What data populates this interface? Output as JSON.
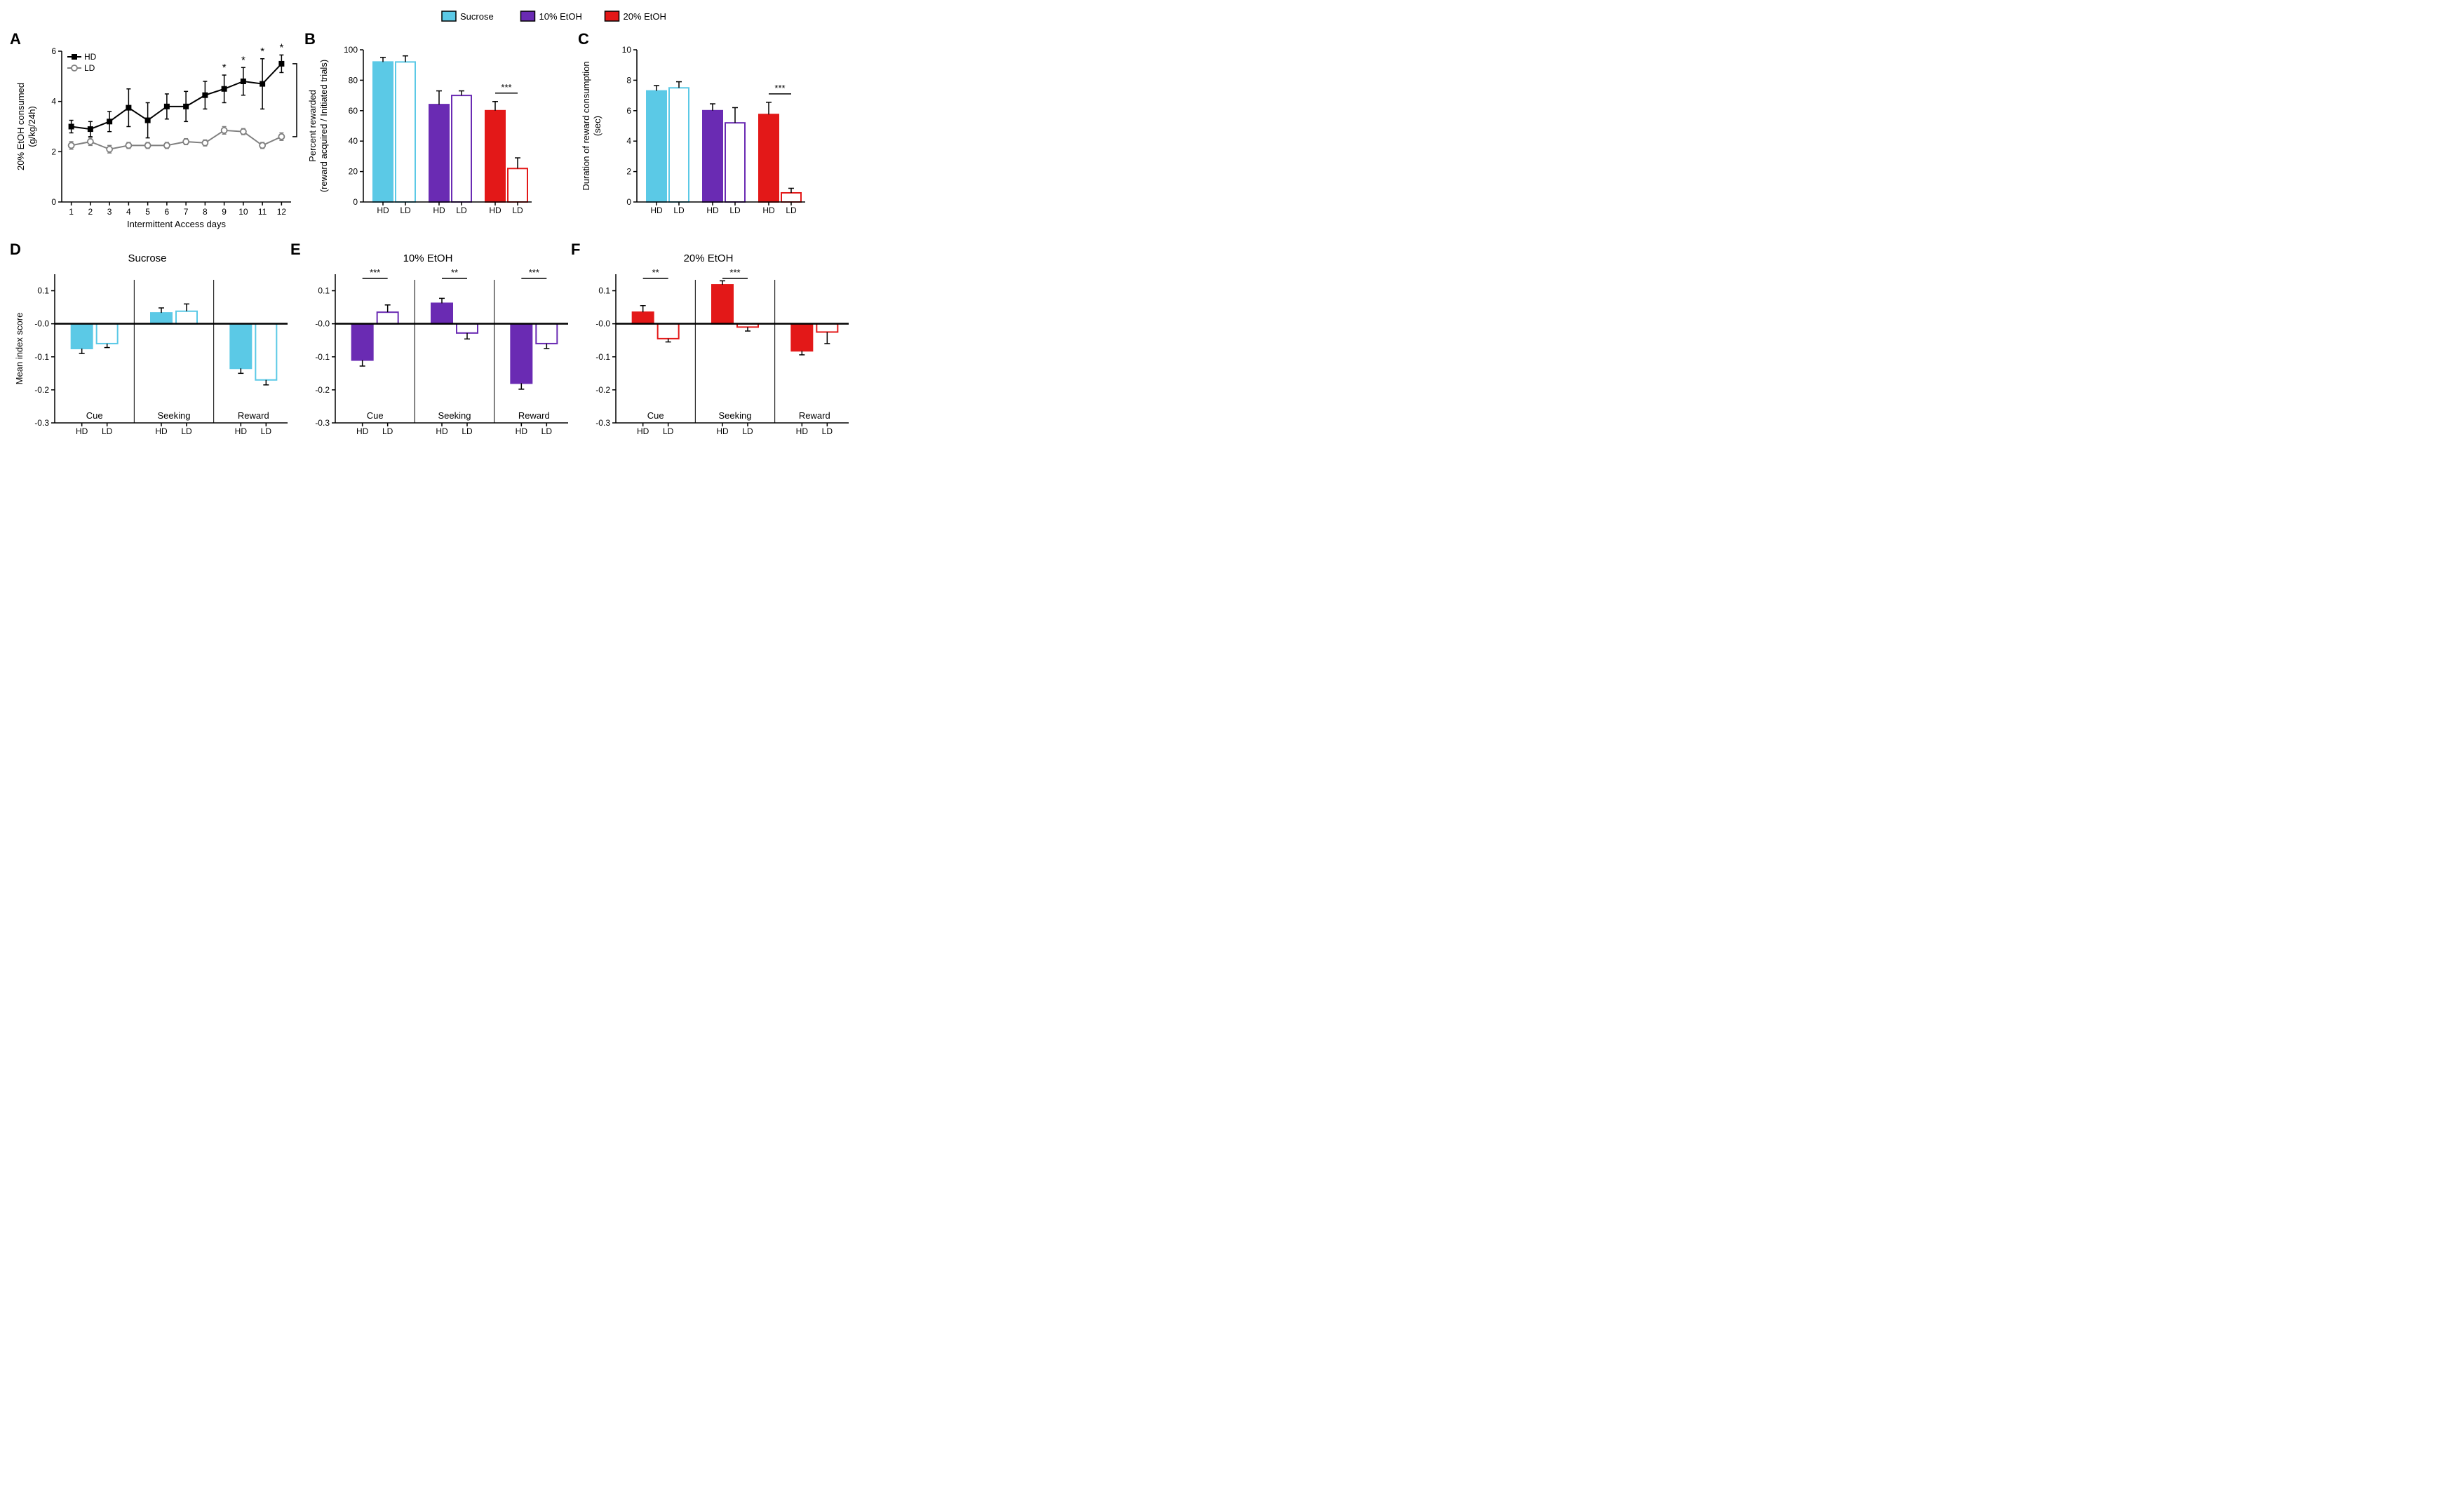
{
  "colors": {
    "sucrose": "#5bc9e6",
    "etoh10": "#6a2bb3",
    "etoh20": "#e31818",
    "black": "#000000",
    "gray": "#808080",
    "white": "#ffffff"
  },
  "legend": {
    "items": [
      {
        "label": "Sucrose",
        "fill": "#5bc9e6"
      },
      {
        "label": "10% EtOH",
        "fill": "#6a2bb3"
      },
      {
        "label": "20% EtOH",
        "fill": "#e31818"
      }
    ]
  },
  "panelA": {
    "label": "A",
    "xlabel": "Intermittent Access days",
    "ylabel": "20% EtOH consumed\n(g/kg/24h)",
    "xlim": [
      0.5,
      12.5
    ],
    "ylim": [
      0,
      6
    ],
    "xticks": [
      1,
      2,
      3,
      4,
      5,
      6,
      7,
      8,
      9,
      10,
      11,
      12
    ],
    "yticks": [
      0,
      2,
      4,
      6
    ],
    "series": [
      {
        "name": "HD",
        "color": "#000000",
        "marker": "square_filled",
        "x": [
          1,
          2,
          3,
          4,
          5,
          6,
          7,
          8,
          9,
          10,
          11,
          12
        ],
        "y": [
          3.0,
          2.9,
          3.2,
          3.75,
          3.25,
          3.8,
          3.8,
          4.25,
          4.5,
          4.8,
          4.7,
          5.5
        ],
        "err": [
          0.25,
          0.3,
          0.4,
          0.75,
          0.7,
          0.5,
          0.6,
          0.55,
          0.55,
          0.55,
          1.0,
          0.35
        ]
      },
      {
        "name": "LD",
        "color": "#808080",
        "marker": "circle_open",
        "x": [
          1,
          2,
          3,
          4,
          5,
          6,
          7,
          8,
          9,
          10,
          11,
          12
        ],
        "y": [
          2.25,
          2.4,
          2.1,
          2.25,
          2.25,
          2.25,
          2.4,
          2.35,
          2.85,
          2.8,
          2.25,
          2.6
        ],
        "err": [
          0.15,
          0.15,
          0.15,
          0.12,
          0.12,
          0.12,
          0.12,
          0.12,
          0.15,
          0.12,
          0.12,
          0.15
        ]
      }
    ],
    "sig_days": [
      9,
      10,
      11,
      12
    ],
    "bracket": true
  },
  "panelB": {
    "label": "B",
    "ylabel": "Percent rewarded\n(reward acquired / Initiated trials)",
    "ylim": [
      0,
      100
    ],
    "yticks": [
      0,
      20,
      40,
      60,
      80,
      100
    ],
    "groups": [
      "HD",
      "LD",
      "HD",
      "LD",
      "HD",
      "LD"
    ],
    "bars": [
      {
        "val": 92,
        "err": 3,
        "fill": "#5bc9e6",
        "stroke": "#5bc9e6"
      },
      {
        "val": 92,
        "err": 4,
        "fill": "#ffffff",
        "stroke": "#5bc9e6"
      },
      {
        "val": 64,
        "err": 9,
        "fill": "#6a2bb3",
        "stroke": "#6a2bb3"
      },
      {
        "val": 70,
        "err": 3,
        "fill": "#ffffff",
        "stroke": "#6a2bb3"
      },
      {
        "val": 60,
        "err": 6,
        "fill": "#e31818",
        "stroke": "#e31818"
      },
      {
        "val": 22,
        "err": 7,
        "fill": "#ffffff",
        "stroke": "#e31818"
      }
    ],
    "sig": [
      {
        "pair": [
          4,
          5
        ],
        "label": "***"
      }
    ]
  },
  "panelC": {
    "label": "C",
    "ylabel": "Duration of reward consumption\n(sec)",
    "ylim": [
      0,
      10
    ],
    "yticks": [
      0,
      2,
      4,
      6,
      8,
      10
    ],
    "groups": [
      "HD",
      "LD",
      "HD",
      "LD",
      "HD",
      "LD"
    ],
    "bars": [
      {
        "val": 7.3,
        "err": 0.35,
        "fill": "#5bc9e6",
        "stroke": "#5bc9e6"
      },
      {
        "val": 7.5,
        "err": 0.4,
        "fill": "#ffffff",
        "stroke": "#5bc9e6"
      },
      {
        "val": 6.0,
        "err": 0.45,
        "fill": "#6a2bb3",
        "stroke": "#6a2bb3"
      },
      {
        "val": 5.2,
        "err": 1.0,
        "fill": "#ffffff",
        "stroke": "#6a2bb3"
      },
      {
        "val": 5.75,
        "err": 0.8,
        "fill": "#e31818",
        "stroke": "#e31818"
      },
      {
        "val": 0.6,
        "err": 0.3,
        "fill": "#ffffff",
        "stroke": "#e31818"
      }
    ],
    "sig": [
      {
        "pair": [
          4,
          5
        ],
        "label": "***"
      }
    ]
  },
  "indexPanels": {
    "ylabel": "Mean index score",
    "ylim": [
      -0.3,
      0.15
    ],
    "yticks": [
      -0.3,
      -0.2,
      -0.1,
      -0.0,
      0.1
    ],
    "sections": [
      "Cue",
      "Seeking",
      "Reward"
    ],
    "groups": [
      "HD",
      "LD",
      "HD",
      "LD",
      "HD",
      "LD"
    ]
  },
  "panelD": {
    "label": "D",
    "title": "Sucrose",
    "color": "#5bc9e6",
    "bars": [
      {
        "val": -0.075,
        "err": 0.015,
        "filled": true
      },
      {
        "val": -0.06,
        "err": 0.012,
        "filled": false
      },
      {
        "val": 0.033,
        "err": 0.015,
        "filled": true
      },
      {
        "val": 0.038,
        "err": 0.022,
        "filled": false
      },
      {
        "val": -0.135,
        "err": 0.015,
        "filled": true
      },
      {
        "val": -0.17,
        "err": 0.015,
        "filled": false
      }
    ],
    "sig": []
  },
  "panelE": {
    "label": "E",
    "title": "10% EtOH",
    "color": "#6a2bb3",
    "bars": [
      {
        "val": -0.11,
        "err": 0.018,
        "filled": true
      },
      {
        "val": 0.035,
        "err": 0.022,
        "filled": false
      },
      {
        "val": 0.062,
        "err": 0.015,
        "filled": true
      },
      {
        "val": -0.028,
        "err": 0.018,
        "filled": false
      },
      {
        "val": -0.18,
        "err": 0.018,
        "filled": true
      },
      {
        "val": -0.06,
        "err": 0.015,
        "filled": false
      }
    ],
    "sig": [
      {
        "pair": [
          0,
          1
        ],
        "label": "***"
      },
      {
        "pair": [
          2,
          3
        ],
        "label": "**"
      },
      {
        "pair": [
          4,
          5
        ],
        "label": "***"
      }
    ]
  },
  "panelF": {
    "label": "F",
    "title": "20% EtOH",
    "color": "#e31818",
    "bars": [
      {
        "val": 0.035,
        "err": 0.02,
        "filled": true
      },
      {
        "val": -0.045,
        "err": 0.01,
        "filled": false
      },
      {
        "val": 0.118,
        "err": 0.012,
        "filled": true
      },
      {
        "val": -0.01,
        "err": 0.012,
        "filled": false
      },
      {
        "val": -0.082,
        "err": 0.012,
        "filled": true
      },
      {
        "val": -0.025,
        "err": 0.035,
        "filled": false
      }
    ],
    "sig": [
      {
        "pair": [
          0,
          1
        ],
        "label": "**"
      },
      {
        "pair": [
          2,
          3
        ],
        "label": "***"
      }
    ]
  }
}
